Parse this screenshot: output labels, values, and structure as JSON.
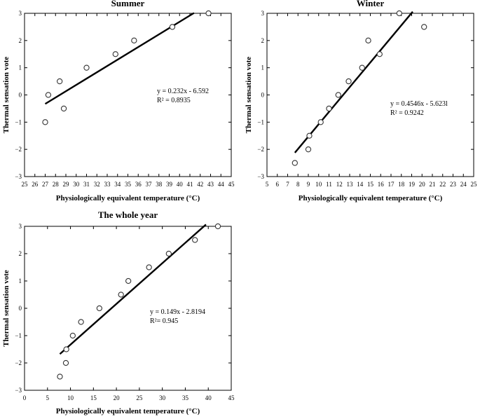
{
  "chart_data": [
    {
      "type": "scatter",
      "title": "Summer",
      "xlabel": "Physiologically equivalent temperature (°C)",
      "ylabel": "Thermal sensation vote",
      "xlim": [
        25,
        45
      ],
      "ylim": [
        -3,
        3
      ],
      "xticks": [
        25,
        26,
        27,
        28,
        29,
        30,
        31,
        32,
        33,
        34,
        35,
        36,
        37,
        38,
        39,
        40,
        41,
        42,
        43,
        44,
        45
      ],
      "yticks": [
        -3,
        -2,
        -1,
        0,
        1,
        2,
        3
      ],
      "points": [
        {
          "x": 27.0,
          "y": -1.0
        },
        {
          "x": 27.3,
          "y": 0.0
        },
        {
          "x": 28.4,
          "y": 0.5
        },
        {
          "x": 28.8,
          "y": -0.5
        },
        {
          "x": 31.0,
          "y": 1.0
        },
        {
          "x": 33.8,
          "y": 1.5
        },
        {
          "x": 35.6,
          "y": 2.0
        },
        {
          "x": 39.3,
          "y": 2.5
        },
        {
          "x": 42.8,
          "y": 3.0
        }
      ],
      "fit": {
        "slope": 0.232,
        "intercept": -6.592,
        "x_range": [
          27.0,
          41.4
        ]
      },
      "equation": "y = 0.232x - 6.592",
      "r2_label": "R² = 0.8935"
    },
    {
      "type": "scatter",
      "title": "Winter",
      "xlabel": "Physiologically equivalent temperature (°C)",
      "ylabel": "Thermal sensation vote",
      "xlim": [
        5,
        25
      ],
      "ylim": [
        -3,
        3
      ],
      "xticks": [
        5,
        6,
        7,
        8,
        9,
        10,
        11,
        12,
        13,
        14,
        15,
        16,
        17,
        18,
        19,
        20,
        21,
        22,
        23,
        24,
        25
      ],
      "yticks": [
        -3,
        -2,
        -1,
        0,
        1,
        2,
        3
      ],
      "points": [
        {
          "x": 7.7,
          "y": -2.5
        },
        {
          "x": 9.0,
          "y": -2.0
        },
        {
          "x": 9.1,
          "y": -1.5
        },
        {
          "x": 10.2,
          "y": -1.0
        },
        {
          "x": 11.0,
          "y": -0.5
        },
        {
          "x": 11.9,
          "y": 0.0
        },
        {
          "x": 12.9,
          "y": 0.5
        },
        {
          "x": 14.2,
          "y": 1.0
        },
        {
          "x": 14.8,
          "y": 2.0
        },
        {
          "x": 15.9,
          "y": 1.5
        },
        {
          "x": 17.8,
          "y": 3.0
        },
        {
          "x": 20.2,
          "y": 2.5
        }
      ],
      "fit": {
        "slope": 0.4546,
        "intercept": -5.6231,
        "x_range": [
          7.7,
          19.1
        ]
      },
      "equation": "y = 0.4546x - 5.623l",
      "r2_label": "R² = 0.9242"
    },
    {
      "type": "scatter",
      "title": "The whole year",
      "xlabel": "Physiologically equivalent temperature (°C)",
      "ylabel": "Thermal sensation vote",
      "xlim": [
        0,
        45
      ],
      "ylim": [
        -3,
        3
      ],
      "xticks": [
        0,
        5,
        10,
        15,
        20,
        25,
        30,
        35,
        40,
        45
      ],
      "yticks": [
        -3,
        -2,
        -1,
        0,
        1,
        2,
        3
      ],
      "points": [
        {
          "x": 7.7,
          "y": -2.5
        },
        {
          "x": 9.0,
          "y": -2.0
        },
        {
          "x": 9.1,
          "y": -1.5
        },
        {
          "x": 10.5,
          "y": -1.0
        },
        {
          "x": 12.3,
          "y": -0.5
        },
        {
          "x": 16.3,
          "y": 0.0
        },
        {
          "x": 21.0,
          "y": 0.5
        },
        {
          "x": 22.6,
          "y": 1.0
        },
        {
          "x": 27.1,
          "y": 1.5
        },
        {
          "x": 31.4,
          "y": 2.0
        },
        {
          "x": 37.1,
          "y": 2.5
        },
        {
          "x": 42.1,
          "y": 3.0
        }
      ],
      "fit": {
        "slope": 0.149,
        "intercept": -2.8194,
        "x_range": [
          7.7,
          39.5
        ]
      },
      "equation": "y = 0.149x - 2.8194",
      "r2_label": "R²= 0.945"
    }
  ]
}
